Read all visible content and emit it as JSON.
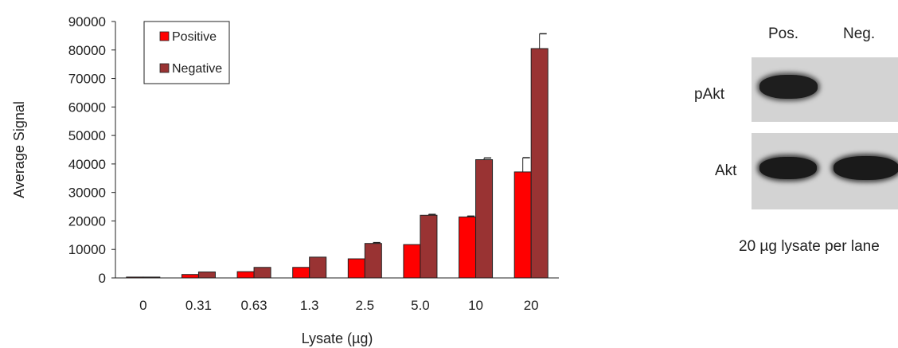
{
  "chart_data": {
    "type": "bar",
    "xlabel": "Lysate (µg)",
    "ylabel": "Average Signal",
    "categories": [
      "0",
      "0.31",
      "0.63",
      "1.3",
      "2.5",
      "5.0",
      "10",
      "20"
    ],
    "ylim": [
      0,
      90000
    ],
    "yticks": [
      0,
      10000,
      20000,
      30000,
      40000,
      50000,
      60000,
      70000,
      80000,
      90000
    ],
    "series": [
      {
        "name": "Positive",
        "color": "#ff0000",
        "values": [
          300,
          1200,
          2200,
          3700,
          6700,
          11700,
          21400,
          37200
        ],
        "errors": [
          0,
          0,
          0,
          0,
          0,
          0,
          300,
          5000
        ]
      },
      {
        "name": "Negative",
        "color": "#993333",
        "values": [
          300,
          2100,
          3700,
          7300,
          12100,
          22000,
          41500,
          80500
        ],
        "errors": [
          0,
          0,
          0,
          0,
          300,
          300,
          600,
          5200
        ]
      }
    ],
    "legend": "top-left",
    "grid": false
  },
  "blot": {
    "lane_labels": [
      "Pos.",
      "Neg."
    ],
    "rows": [
      {
        "label": "pAkt"
      },
      {
        "label": "Akt"
      }
    ],
    "caption": "20 µg lysate per lane"
  }
}
